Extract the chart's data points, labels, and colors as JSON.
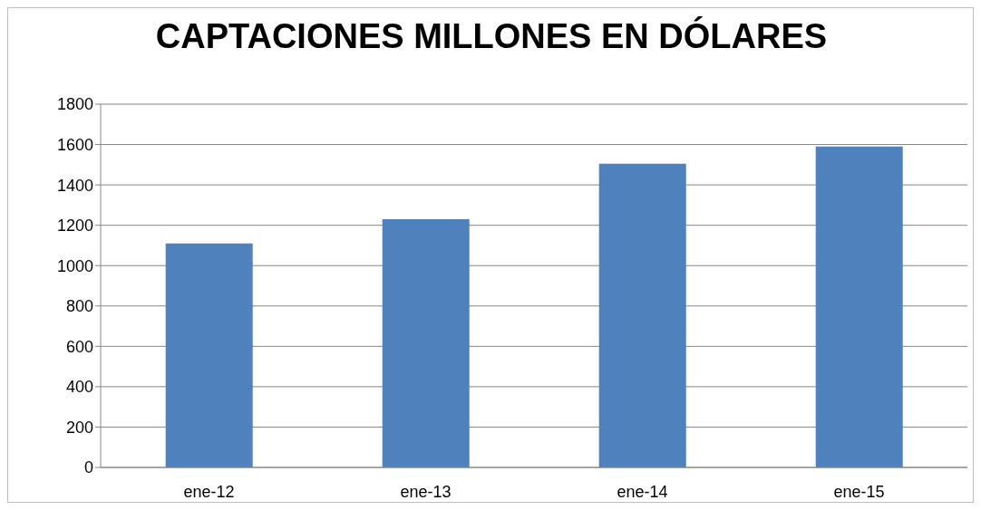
{
  "chart_data": {
    "type": "bar",
    "title": "CAPTACIONES MILLONES EN DÓLARES",
    "categories": [
      "ene-12",
      "ene-13",
      "ene-14",
      "ene-15"
    ],
    "values": [
      1110,
      1230,
      1505,
      1590
    ],
    "color": "#4f81bd",
    "ylim": [
      0,
      1800
    ],
    "yticks": [
      0,
      200,
      400,
      600,
      800,
      1000,
      1200,
      1400,
      1600,
      1800
    ],
    "grid": "y"
  }
}
